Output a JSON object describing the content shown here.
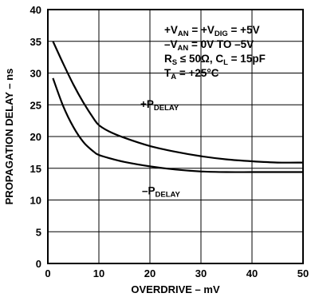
{
  "chart_data": {
    "type": "line",
    "xlabel": "OVERDRIVE – mV",
    "ylabel": "PROPAGATION DELAY – ns",
    "xlim": [
      0,
      50
    ],
    "ylim": [
      0,
      40
    ],
    "x_ticks": [
      "0",
      "10",
      "20",
      "30",
      "40",
      "50"
    ],
    "y_ticks": [
      "0",
      "5",
      "10",
      "15",
      "20",
      "25",
      "30",
      "35",
      "40"
    ],
    "grid": true,
    "conditions": [
      {
        "text": "+V",
        "sub": "AN",
        "text2": " = +V",
        "sub2": "DIG",
        "text3": " = +5V"
      },
      {
        "text": "–V",
        "sub": "AN",
        "text2": " = 0V TO –5V",
        "sub2": "",
        "text3": ""
      },
      {
        "text": "R",
        "sub": "S",
        "text2": " ≤ 50Ω, C",
        "sub2": "L",
        "text3": " = 15pF"
      },
      {
        "text": "T",
        "sub": "A",
        "text2": " = +25°C",
        "sub2": "",
        "text3": ""
      }
    ],
    "series": [
      {
        "name": "+P",
        "name_sub": "DELAY",
        "x": [
          1,
          3,
          5,
          7,
          9,
          10,
          12,
          15,
          20,
          25,
          30,
          35,
          40,
          45,
          50
        ],
        "y": [
          35,
          31.5,
          28.2,
          25.3,
          22.8,
          21.8,
          20.8,
          19.8,
          18.5,
          17.6,
          16.9,
          16.4,
          16.1,
          15.9,
          15.9
        ]
      },
      {
        "name": "–P",
        "name_sub": "DELAY",
        "x": [
          1,
          3,
          5,
          7,
          9,
          10,
          12,
          15,
          20,
          25,
          30,
          35,
          40,
          45,
          50
        ],
        "y": [
          29.2,
          24.8,
          21.5,
          19.1,
          17.6,
          17.1,
          16.6,
          16.0,
          15.3,
          14.8,
          14.5,
          14.4,
          14.4,
          14.4,
          14.4
        ]
      }
    ]
  }
}
